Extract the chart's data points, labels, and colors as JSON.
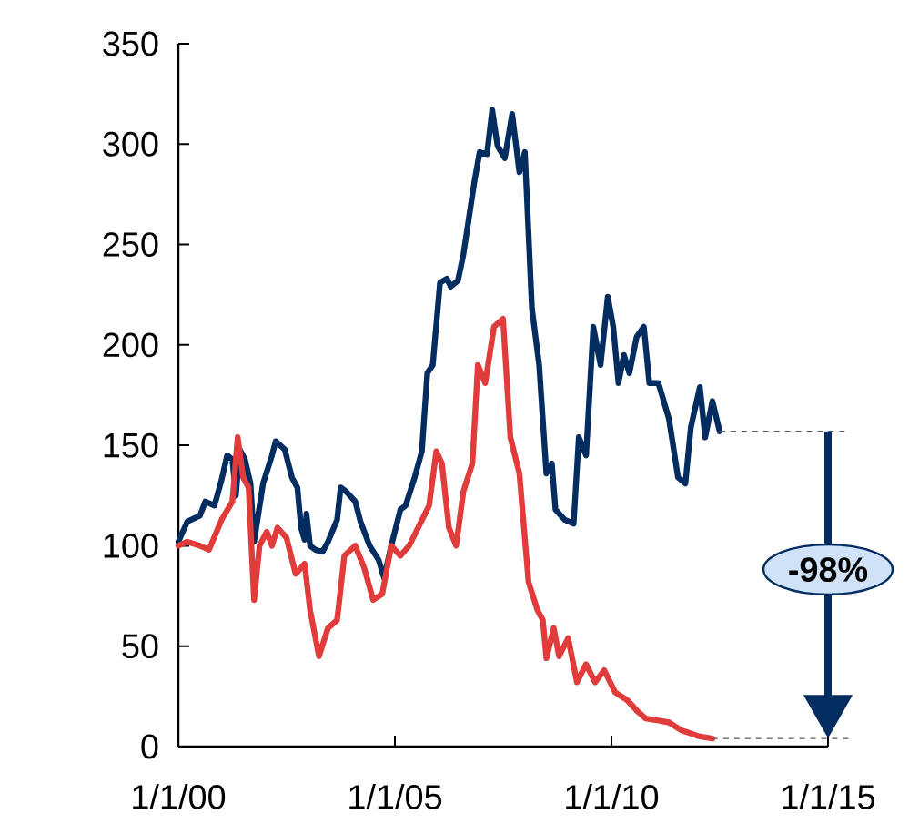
{
  "chart_data": {
    "type": "line",
    "xlim": [
      "2000-01-01",
      "2015-01-01"
    ],
    "ylim": [
      0,
      350
    ],
    "xticks": [
      {
        "value": "2000-01-01",
        "label": "1/1/00"
      },
      {
        "value": "2005-01-01",
        "label": "1/1/05"
      },
      {
        "value": "2010-01-01",
        "label": "1/1/10"
      },
      {
        "value": "2015-01-01",
        "label": "1/1/15"
      }
    ],
    "yticks": [
      0,
      50,
      100,
      150,
      200,
      250,
      300,
      350
    ],
    "grid": false,
    "marker": "none",
    "line_style": "solid",
    "series": [
      {
        "color": "#032c60",
        "x": [
          "2000-01-01",
          "2000-03-16",
          "2000-07-01",
          "2000-08-16",
          "2000-11-01",
          "2001-01-01",
          "2001-02-16",
          "2001-04-01",
          "2001-05-01",
          "2001-06-01",
          "2001-07-16",
          "2001-09-01",
          "2001-10-01",
          "2001-12-16",
          "2002-03-01",
          "2002-04-01",
          "2002-06-16",
          "2002-08-16",
          "2002-10-01",
          "2002-11-01",
          "2002-12-01",
          "2002-12-16",
          "2003-01-16",
          "2003-03-01",
          "2003-05-01",
          "2003-06-16",
          "2003-09-01",
          "2003-10-01",
          "2003-11-16",
          "2004-02-01",
          "2004-03-16",
          "2004-06-01",
          "2004-08-16",
          "2004-10-01",
          "2004-12-01",
          "2005-02-16",
          "2005-04-01",
          "2005-06-16",
          "2005-08-16",
          "2005-10-01",
          "2005-11-16",
          "2006-01-16",
          "2006-03-16",
          "2006-04-16",
          "2006-06-16",
          "2006-08-01",
          "2006-09-16",
          "2006-11-01",
          "2006-12-16",
          "2007-02-16",
          "2007-04-01",
          "2007-05-16",
          "2007-07-16",
          "2007-09-16",
          "2007-11-16",
          "2008-01-01",
          "2008-03-01",
          "2008-05-01",
          "2008-07-01",
          "2008-08-16",
          "2008-09-16",
          "2008-12-01",
          "2009-02-16",
          "2009-04-01",
          "2009-06-01",
          "2009-08-01",
          "2009-10-01",
          "2009-12-01",
          "2010-01-16",
          "2010-03-01",
          "2010-04-16",
          "2010-06-01",
          "2010-08-01",
          "2010-10-01",
          "2010-11-16",
          "2011-02-01",
          "2011-05-01",
          "2011-07-16",
          "2011-09-16",
          "2011-11-01",
          "2012-01-16",
          "2012-03-01",
          "2012-05-01",
          "2012-07-01"
        ],
        "values": [
          102,
          112,
          115,
          122,
          120,
          133,
          145,
          143,
          125,
          148,
          143,
          131,
          102,
          131,
          145,
          152,
          148,
          134,
          129,
          109,
          103,
          116,
          100,
          98,
          97,
          102,
          113,
          129,
          127,
          122,
          112,
          100,
          93,
          84,
          100,
          118,
          120,
          134,
          147,
          186,
          190,
          231,
          233,
          229,
          232,
          245,
          263,
          281,
          296,
          295,
          317,
          299,
          293,
          315,
          286,
          296,
          218,
          190,
          136,
          141,
          118,
          113,
          111,
          154,
          145,
          209,
          190,
          224,
          209,
          181,
          195,
          186,
          204,
          209,
          181,
          181,
          163,
          134,
          131,
          159,
          179,
          154,
          172,
          157
        ]
      },
      {
        "color": "#e03c3c",
        "x": [
          "2000-01-01",
          "2000-03-16",
          "2000-07-01",
          "2000-09-16",
          "2001-01-01",
          "2001-04-01",
          "2001-05-16",
          "2001-07-01",
          "2001-08-16",
          "2001-10-01",
          "2001-11-16",
          "2002-01-16",
          "2002-03-01",
          "2002-04-16",
          "2002-07-01",
          "2002-09-16",
          "2002-12-01",
          "2003-01-16",
          "2003-04-01",
          "2003-06-16",
          "2003-09-01",
          "2003-11-01",
          "2004-02-01",
          "2004-04-16",
          "2004-07-01",
          "2004-09-16",
          "2004-12-01",
          "2005-02-16",
          "2005-05-01",
          "2005-07-16",
          "2005-10-16",
          "2005-12-16",
          "2006-02-01",
          "2006-04-01",
          "2006-06-01",
          "2006-08-01",
          "2006-10-16",
          "2006-12-01",
          "2007-02-01",
          "2007-04-16",
          "2007-07-01",
          "2007-09-01",
          "2007-11-16",
          "2008-02-01",
          "2008-04-16",
          "2008-06-01",
          "2008-07-01",
          "2008-09-01",
          "2008-10-16",
          "2009-01-01",
          "2009-03-16",
          "2009-06-01",
          "2009-08-16",
          "2009-11-01",
          "2010-02-01",
          "2010-05-16",
          "2010-08-01",
          "2010-10-16",
          "2011-02-01",
          "2011-05-01",
          "2011-08-16",
          "2012-01-16",
          "2012-05-01"
        ],
        "values": [
          100,
          102,
          100,
          98,
          113,
          122,
          154,
          134,
          129,
          73,
          100,
          107,
          100,
          109,
          104,
          86,
          91,
          68,
          45,
          59,
          63,
          95,
          100,
          89,
          73,
          76,
          100,
          95,
          100,
          109,
          120,
          147,
          141,
          109,
          100,
          127,
          141,
          190,
          181,
          209,
          213,
          154,
          136,
          82,
          68,
          63,
          44,
          59,
          45,
          54,
          32,
          41,
          32,
          38,
          27,
          23,
          18,
          14,
          13,
          12,
          8,
          5,
          4
        ]
      }
    ],
    "annotations": [
      "-98%"
    ]
  }
}
